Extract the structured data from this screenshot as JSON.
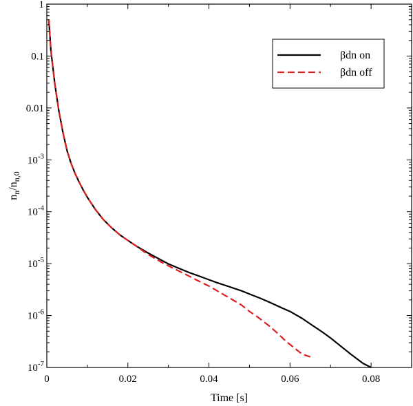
{
  "chart_data": {
    "type": "line",
    "xlabel": "Time [s]",
    "ylabel": {
      "base": "n",
      "sub1": "n",
      "mid": "/n",
      "sub2": "n,0"
    },
    "xlim": [
      0,
      0.09
    ],
    "ylim": [
      1e-07,
      1
    ],
    "yscale": "log",
    "grid": false,
    "legend_position": "top-right",
    "x_ticks": [
      0,
      0.02,
      0.04,
      0.06,
      0.08
    ],
    "x_tick_labels": [
      "0",
      "0.02",
      "0.04",
      "0.06",
      "0.08"
    ],
    "y_tick_labels": [
      {
        "value": 1,
        "plain": "1"
      },
      {
        "value": 0.1,
        "plain": "0.1"
      },
      {
        "value": 0.01,
        "plain": "0.01"
      },
      {
        "value": 0.001,
        "base": "10",
        "exp": "-3"
      },
      {
        "value": 0.0001,
        "base": "10",
        "exp": "-4"
      },
      {
        "value": 1e-05,
        "base": "10",
        "exp": "-5"
      },
      {
        "value": 1e-06,
        "base": "10",
        "exp": "-6"
      },
      {
        "value": 1e-07,
        "base": "10",
        "exp": "-7"
      }
    ],
    "series": [
      {
        "name": "βdn on",
        "color": "#000000",
        "dash": "solid",
        "x": [
          0.0005,
          0.001,
          0.002,
          0.003,
          0.004,
          0.005,
          0.006,
          0.007,
          0.008,
          0.009,
          0.01,
          0.012,
          0.014,
          0.016,
          0.018,
          0.02,
          0.022,
          0.025,
          0.028,
          0.03,
          0.032,
          0.035,
          0.038,
          0.04,
          0.042,
          0.045,
          0.048,
          0.05,
          0.053,
          0.055,
          0.058,
          0.06,
          0.063,
          0.065,
          0.068,
          0.07,
          0.073,
          0.075,
          0.078,
          0.08
        ],
        "y": [
          0.5,
          0.13,
          0.028,
          0.0085,
          0.0033,
          0.0015,
          0.00085,
          0.00054,
          0.00037,
          0.00026,
          0.00019,
          0.00011,
          7e-05,
          4.9e-05,
          3.6e-05,
          2.8e-05,
          2.2e-05,
          1.6e-05,
          1.2e-05,
          9.9e-06,
          8.5e-06,
          6.8e-06,
          5.6e-06,
          4.9e-06,
          4.3e-06,
          3.6e-06,
          3e-06,
          2.6e-06,
          2.1e-06,
          1.8e-06,
          1.4e-06,
          1.2e-06,
          8.8e-07,
          6.9e-07,
          4.8e-07,
          3.7e-07,
          2.4e-07,
          1.8e-07,
          1.2e-07,
          1e-07
        ]
      },
      {
        "name": "βdn off",
        "color": "#dd1e1e",
        "dash": "dashed",
        "x": [
          0.0005,
          0.001,
          0.002,
          0.003,
          0.004,
          0.005,
          0.006,
          0.007,
          0.008,
          0.009,
          0.01,
          0.012,
          0.014,
          0.016,
          0.018,
          0.02,
          0.022,
          0.025,
          0.028,
          0.03,
          0.032,
          0.035,
          0.038,
          0.04,
          0.042,
          0.045,
          0.048,
          0.05,
          0.052,
          0.055,
          0.057,
          0.059,
          0.061,
          0.063,
          0.065
        ],
        "y": [
          0.5,
          0.13,
          0.028,
          0.0085,
          0.0033,
          0.0015,
          0.00085,
          0.00054,
          0.00037,
          0.00026,
          0.00019,
          0.00011,
          7e-05,
          4.9e-05,
          3.6e-05,
          2.8e-05,
          2.2e-05,
          1.5e-05,
          1.1e-05,
          9.1e-06,
          7.6e-06,
          5.8e-06,
          4.4e-06,
          3.7e-06,
          3e-06,
          2.2e-06,
          1.6e-06,
          1.2e-06,
          9.4e-07,
          6.2e-07,
          4.5e-07,
          3.2e-07,
          2.4e-07,
          1.8e-07,
          1.6e-07
        ]
      }
    ]
  }
}
